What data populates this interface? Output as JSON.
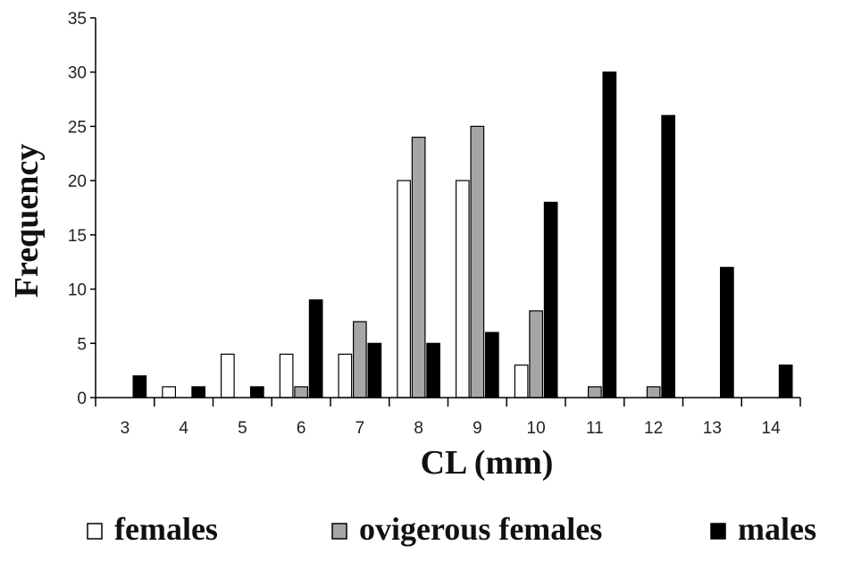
{
  "chart_data": {
    "type": "bar",
    "xlabel": "CL (mm)",
    "ylabel": "Frequency",
    "categories": [
      "3",
      "4",
      "5",
      "6",
      "7",
      "8",
      "9",
      "10",
      "11",
      "12",
      "13",
      "14"
    ],
    "ylim": [
      0,
      35
    ],
    "yticks": [
      0,
      5,
      10,
      15,
      20,
      25,
      30,
      35
    ],
    "grid": false,
    "legend_position": "bottom",
    "series": [
      {
        "name": "females",
        "color": "#ffffff",
        "values": [
          0,
          1,
          4,
          4,
          4,
          20,
          20,
          3,
          0,
          0,
          0,
          0
        ]
      },
      {
        "name": "ovigerous females",
        "color": "#a6a6a6",
        "values": [
          0,
          0,
          0,
          1,
          7,
          24,
          25,
          8,
          1,
          1,
          0,
          0
        ]
      },
      {
        "name": "males",
        "color": "#000000",
        "values": [
          2,
          1,
          1,
          9,
          5,
          5,
          6,
          18,
          30,
          26,
          12,
          3
        ]
      }
    ]
  }
}
